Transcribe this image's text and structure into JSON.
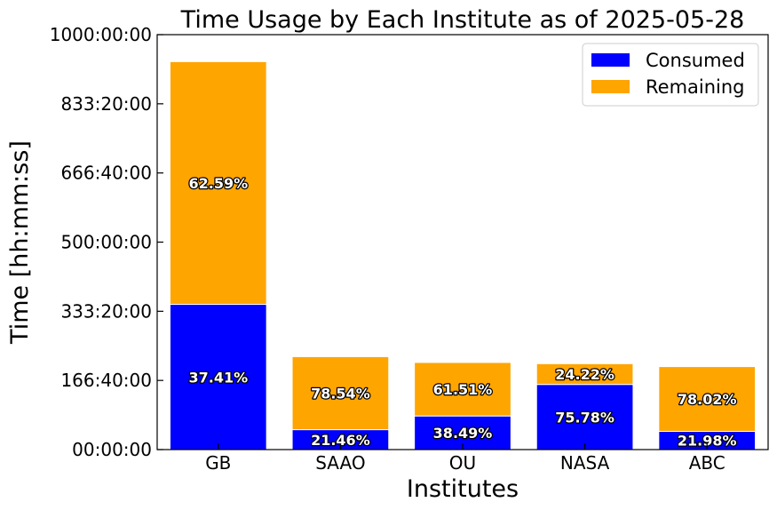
{
  "chart_data": {
    "type": "bar",
    "stacked": true,
    "title": "Time Usage by Each Institute as of 2025-05-28",
    "xlabel": "Institutes",
    "ylabel": "Time [hh:mm:ss]",
    "categories": [
      "GB",
      "SAAO",
      "OU",
      "NASA",
      "ABC"
    ],
    "ylim": [
      0,
      1000
    ],
    "yticks": [
      0,
      166.667,
      333.333,
      500,
      666.667,
      833.333,
      1000
    ],
    "ytick_labels": [
      "00:00:00",
      "166:40:00",
      "333:20:00",
      "500:00:00",
      "666:40:00",
      "833:20:00",
      "1000:00:00"
    ],
    "series": [
      {
        "name": "Consumed",
        "color": "#0000ff",
        "values": [
          350,
          48,
          81,
          157,
          44
        ],
        "labels": [
          "37.41%",
          "21.46%",
          "38.49%",
          "75.78%",
          "21.98%"
        ]
      },
      {
        "name": "Remaining",
        "color": "#ffa500",
        "values": [
          585,
          176,
          129,
          50,
          156
        ],
        "labels": [
          "62.59%",
          "78.54%",
          "61.51%",
          "24.22%",
          "78.02%"
        ]
      }
    ],
    "legend_position": "top-right",
    "grid": false
  }
}
